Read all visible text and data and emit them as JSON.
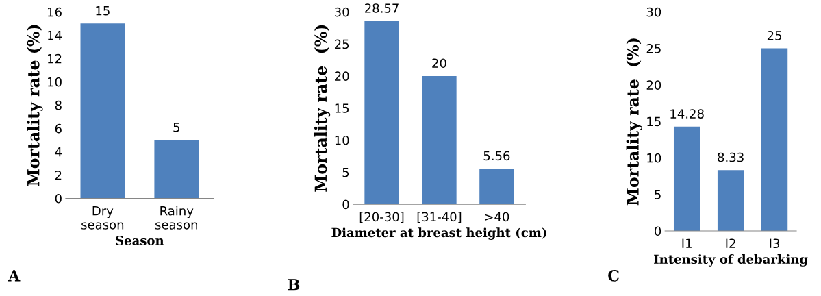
{
  "chart_data": [
    {
      "type": "bar",
      "xlabel": "Season",
      "ylabel": "Mortality rate (%)",
      "categories": [
        "Dry\nseason",
        "Rainy\nseason"
      ],
      "values": [
        15,
        5
      ],
      "color": "#4f81bd",
      "ylim": [
        0,
        16
      ],
      "yticks": [
        0,
        2,
        4,
        6,
        8,
        10,
        12,
        14,
        16
      ],
      "data_labels": true,
      "annotations": [
        "A"
      ]
    },
    {
      "type": "bar",
      "xlabel": "Diameter at breast height (cm)",
      "ylabel": "Mortality rate  (%)",
      "categories": [
        "[20-30]",
        "[31-40]",
        ">40"
      ],
      "values": [
        28.57,
        20,
        5.56
      ],
      "color": "#4f81bd",
      "ylim": [
        0,
        30
      ],
      "yticks": [
        0,
        5,
        10,
        15,
        20,
        25,
        30
      ],
      "data_labels": true,
      "annotations": [
        "B"
      ]
    },
    {
      "type": "bar",
      "xlabel": "Intensity of debarking",
      "ylabel": "Mortality rate  (%)",
      "categories": [
        "I1",
        "I2",
        "I3"
      ],
      "values": [
        14.28,
        8.33,
        25
      ],
      "color": "#4f81bd",
      "ylim": [
        0,
        30
      ],
      "yticks": [
        0,
        5,
        10,
        15,
        20,
        25,
        30
      ],
      "data_labels": true,
      "annotations": [
        "C"
      ]
    }
  ]
}
